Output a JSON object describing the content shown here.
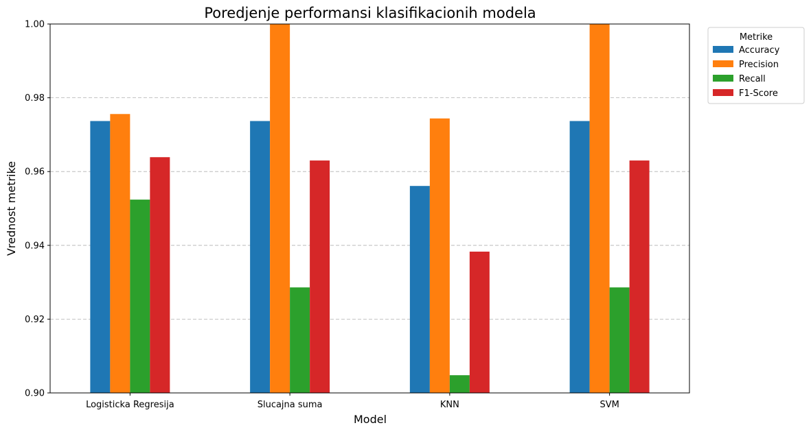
{
  "chart_data": {
    "type": "bar",
    "title": "Poredjenje performansi klasifikacionih modela",
    "xlabel": "Model",
    "ylabel": "Vrednost metrike",
    "categories": [
      "Logisticka Regresija",
      "Slucajna suma",
      "KNN",
      "SVM"
    ],
    "ylim": [
      0.9,
      1.0
    ],
    "yticks": [
      "0.90",
      "0.92",
      "0.94",
      "0.96",
      "0.98",
      "1.00"
    ],
    "grid": "y-dashed",
    "legend": {
      "title": "Metrike",
      "placement": "outside-top-right"
    },
    "series": [
      {
        "name": "Accuracy",
        "color": "#1f77b4",
        "values": [
          0.9737,
          0.9737,
          0.9561,
          0.9737
        ]
      },
      {
        "name": "Precision",
        "color": "#ff7f0e",
        "values": [
          0.9756,
          1.0,
          0.9744,
          1.0
        ]
      },
      {
        "name": "Recall",
        "color": "#2ca02c",
        "values": [
          0.9524,
          0.9286,
          0.9048,
          0.9286
        ]
      },
      {
        "name": "F1-Score",
        "color": "#d62728",
        "values": [
          0.9639,
          0.963,
          0.9383,
          0.963
        ]
      }
    ]
  }
}
